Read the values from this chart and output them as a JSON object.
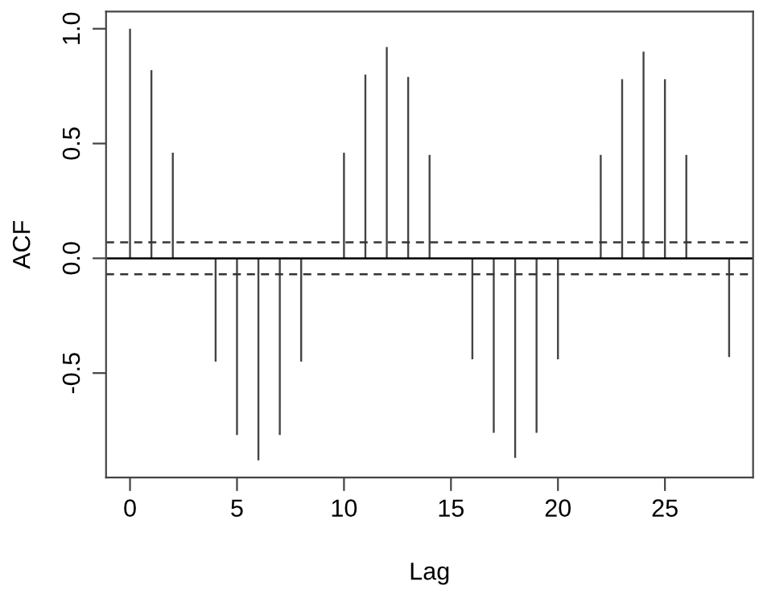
{
  "chart_data": {
    "type": "bar",
    "xlabel": "Lag",
    "ylabel": "ACF",
    "x": [
      0,
      1,
      2,
      3,
      4,
      5,
      6,
      7,
      8,
      9,
      10,
      11,
      12,
      13,
      14,
      15,
      16,
      17,
      18,
      19,
      20,
      21,
      22,
      23,
      24,
      25,
      26,
      27,
      28
    ],
    "values": [
      1.0,
      0.82,
      0.46,
      0.0,
      -0.45,
      -0.77,
      -0.88,
      -0.77,
      -0.45,
      0.0,
      0.46,
      0.8,
      0.92,
      0.79,
      0.45,
      0.0,
      -0.44,
      -0.76,
      -0.87,
      -0.76,
      -0.44,
      0.0,
      0.45,
      0.78,
      0.9,
      0.78,
      0.45,
      0.0,
      -0.43
    ],
    "color": "#444444",
    "xlim": [
      -1.12,
      29.12
    ],
    "ylim": [
      -0.955,
      1.075
    ],
    "xticks": [
      0,
      5,
      10,
      15,
      20,
      25
    ],
    "yticks": [
      {
        "value": -0.5,
        "label": "-0.5"
      },
      {
        "value": 0,
        "label": "0.0"
      },
      {
        "value": 0.5,
        "label": "0.5"
      },
      {
        "value": 1,
        "label": "1.0"
      }
    ],
    "ref_lines": [
      {
        "axis": "y",
        "value": 0,
        "color": "#000000",
        "line_style": "solid"
      },
      {
        "axis": "y",
        "value": 0.07,
        "color": "#333333",
        "line_style": "dashed"
      },
      {
        "axis": "y",
        "value": -0.07,
        "color": "#333333",
        "line_style": "dashed"
      }
    ],
    "grid": false,
    "legend": false
  }
}
